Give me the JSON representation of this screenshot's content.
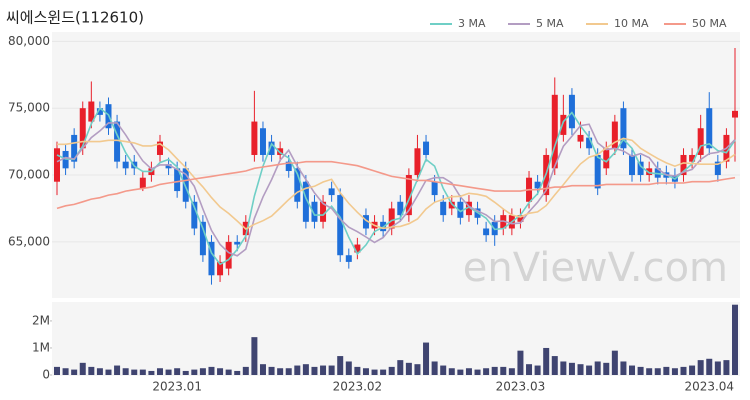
{
  "chart_data": [
    {
      "type": "candlestick",
      "title": "씨에스윈드(112610)",
      "watermark": "enViewV.com",
      "up_color": "#e8202a",
      "down_color": "#1f6fd9",
      "categories": [
        null,
        null,
        null,
        null,
        null,
        null,
        null,
        null,
        null,
        null,
        null,
        null,
        null,
        null,
        "2023.01",
        null,
        null,
        null,
        null,
        null,
        null,
        null,
        null,
        null,
        null,
        null,
        null,
        null,
        null,
        null,
        null,
        null,
        null,
        null,
        null,
        "2023.02",
        null,
        null,
        null,
        null,
        null,
        null,
        null,
        null,
        null,
        null,
        null,
        null,
        null,
        null,
        null,
        null,
        null,
        null,
        "2023.03",
        null,
        null,
        null,
        null,
        null,
        null,
        null,
        null,
        null,
        null,
        null,
        null,
        null,
        null,
        null,
        null,
        null,
        null,
        null,
        null,
        null,
        "2023.04",
        null,
        null,
        null
      ],
      "open": [
        69500,
        71800,
        73000,
        72000,
        74000,
        75000,
        75300,
        74000,
        71000,
        71000,
        69000,
        70000,
        71500,
        70800,
        70500,
        70500,
        68000,
        66500,
        65000,
        62500,
        63000,
        65000,
        65500,
        71500,
        73500,
        72500,
        71500,
        71000,
        70500,
        69500,
        68000,
        66500,
        69000,
        68500,
        64000,
        64200,
        67000,
        66000,
        66500,
        66000,
        68000,
        67000,
        70000,
        72500,
        69500,
        68000,
        67500,
        68000,
        67000,
        67500,
        66000,
        66500,
        66000,
        66000,
        66500,
        68000,
        69500,
        68500,
        70500,
        73000,
        76000,
        72500,
        72800,
        71500,
        70500,
        72000,
        75000,
        71500,
        71000,
        70000,
        70500,
        70200,
        70000,
        70000,
        71000,
        71500,
        75000,
        71000,
        71000,
        74300
      ],
      "high": [
        72500,
        72300,
        73500,
        75500,
        77000,
        75500,
        75800,
        74500,
        71500,
        71500,
        70300,
        71000,
        73000,
        71300,
        71000,
        71000,
        68500,
        67000,
        65500,
        64000,
        65500,
        65500,
        67000,
        76300,
        74000,
        73000,
        72500,
        71500,
        71000,
        70000,
        68500,
        68500,
        69500,
        69000,
        64500,
        65300,
        67500,
        67000,
        67000,
        68000,
        68500,
        70500,
        73000,
        73000,
        70000,
        68500,
        68500,
        68500,
        68500,
        68000,
        66500,
        67000,
        67500,
        67500,
        67500,
        70300,
        70000,
        72000,
        77300,
        76000,
        76500,
        74000,
        73300,
        72000,
        72500,
        74500,
        75500,
        72000,
        71500,
        71000,
        71000,
        70700,
        70500,
        72000,
        72000,
        74500,
        76200,
        71500,
        73500,
        79500
      ],
      "low": [
        68500,
        70000,
        70500,
        71500,
        73500,
        74000,
        73000,
        70500,
        70000,
        70000,
        68800,
        69500,
        71000,
        70000,
        68300,
        67500,
        65500,
        63500,
        61800,
        62000,
        62500,
        64300,
        65000,
        71000,
        71000,
        71000,
        71000,
        69800,
        67500,
        66000,
        66000,
        66000,
        68000,
        63500,
        63000,
        63700,
        65500,
        65500,
        65300,
        65500,
        66500,
        66500,
        69500,
        71000,
        68000,
        66500,
        67000,
        66300,
        66500,
        66300,
        65000,
        64700,
        65500,
        65500,
        66000,
        67500,
        68500,
        68000,
        70000,
        72500,
        73000,
        72000,
        71500,
        68500,
        70000,
        71500,
        71500,
        69500,
        69500,
        69500,
        69300,
        69300,
        69000,
        69500,
        70500,
        71000,
        71500,
        69500,
        70500,
        71000
      ],
      "close": [
        72000,
        70500,
        71000,
        75000,
        75500,
        74500,
        73500,
        71000,
        70500,
        70500,
        69800,
        70500,
        72500,
        70500,
        68800,
        68000,
        66000,
        64000,
        62500,
        63500,
        65000,
        64800,
        66500,
        74000,
        71500,
        71500,
        72000,
        70300,
        68000,
        66500,
        66500,
        68000,
        68500,
        64000,
        63500,
        64800,
        66000,
        66500,
        65800,
        67500,
        67000,
        70000,
        72000,
        71500,
        68500,
        67000,
        68000,
        66800,
        68000,
        66800,
        65500,
        65500,
        67000,
        67000,
        67000,
        69800,
        69000,
        71500,
        76000,
        74500,
        73500,
        73000,
        72000,
        69000,
        72000,
        74000,
        72000,
        70000,
        70000,
        70500,
        69800,
        69800,
        69500,
        71500,
        71500,
        73500,
        72000,
        70000,
        73000,
        74800
      ],
      "series": [
        {
          "name": "3 MA",
          "color": "#6fcfc6",
          "values": [
            71500,
            71200,
            71170,
            72170,
            73830,
            75000,
            74500,
            73000,
            71670,
            70670,
            70270,
            70270,
            70930,
            71170,
            70600,
            69100,
            67600,
            66000,
            64170,
            63330,
            63670,
            64430,
            65430,
            68430,
            70670,
            72330,
            71670,
            71270,
            70100,
            68270,
            67000,
            67000,
            67670,
            66830,
            65330,
            64100,
            64770,
            65770,
            66100,
            66600,
            66770,
            68170,
            69670,
            71170,
            70670,
            69000,
            67830,
            67270,
            67600,
            67200,
            66770,
            65930,
            66000,
            66500,
            67000,
            67930,
            68600,
            70100,
            72170,
            74000,
            74670,
            73670,
            72830,
            71330,
            71000,
            71670,
            72670,
            72000,
            70670,
            70170,
            70100,
            70030,
            69700,
            70270,
            70830,
            72170,
            72330,
            71830,
            71670,
            72600
          ]
        },
        {
          "name": "5 MA",
          "color": "#b39dc2",
          "values": [
            71000,
            71300,
            71200,
            72000,
            72800,
            73300,
            73900,
            73900,
            73000,
            72000,
            71060,
            70460,
            70760,
            70760,
            70420,
            70060,
            69160,
            67460,
            65860,
            64800,
            64200,
            63960,
            64460,
            66760,
            68360,
            69660,
            71100,
            71860,
            70660,
            69660,
            68660,
            67860,
            67500,
            66700,
            66100,
            65760,
            65360,
            64960,
            65320,
            66120,
            66560,
            67360,
            68460,
            69600,
            69800,
            69800,
            69400,
            68360,
            67660,
            67320,
            67020,
            66520,
            66560,
            66360,
            66400,
            67260,
            67960,
            68860,
            70660,
            72160,
            72900,
            73700,
            73800,
            72400,
            71900,
            72000,
            71800,
            71400,
            71600,
            71300,
            70460,
            70020,
            69920,
            70220,
            70420,
            71160,
            71600,
            71700,
            72000,
            72660
          ]
        },
        {
          "name": "10 MA",
          "color": "#f2c98f",
          "values": [
            72300,
            72300,
            72400,
            72500,
            72500,
            72500,
            72600,
            72600,
            72500,
            72400,
            72180,
            72180,
            72330,
            71880,
            71210,
            70560,
            69810,
            69110,
            68310,
            67610,
            67130,
            66560,
            65960,
            66310,
            66580,
            66930,
            67530,
            68160,
            68710,
            69010,
            69160,
            69480,
            69680,
            68680,
            67880,
            67210,
            66610,
            66230,
            66010,
            66110,
            66160,
            66360,
            66710,
            67460,
            67960,
            68180,
            68380,
            68410,
            68630,
            68560,
            68410,
            67960,
            67460,
            67010,
            66860,
            67140,
            67240,
            67710,
            68510,
            69280,
            70080,
            70830,
            71330,
            71530,
            72030,
            72450,
            72750,
            72600,
            72000,
            71600,
            71230,
            70910,
            70660,
            70910,
            70860,
            70810,
            70810,
            70810,
            71110,
            71540
          ]
        },
        {
          "name": "50 MA",
          "color": "#f4998a",
          "values": [
            67500,
            67700,
            67800,
            68000,
            68200,
            68300,
            68500,
            68600,
            68800,
            68900,
            69000,
            69100,
            69300,
            69400,
            69500,
            69600,
            69700,
            69800,
            69900,
            70000,
            70100,
            70200,
            70300,
            70500,
            70600,
            70700,
            70800,
            70900,
            70900,
            71000,
            71000,
            71000,
            71000,
            70900,
            70800,
            70700,
            70500,
            70300,
            70100,
            69900,
            69800,
            69700,
            69600,
            69600,
            69500,
            69400,
            69300,
            69200,
            69100,
            69000,
            68900,
            68800,
            68800,
            68800,
            68800,
            68900,
            68900,
            69000,
            69100,
            69100,
            69200,
            69200,
            69200,
            69200,
            69300,
            69300,
            69300,
            69300,
            69300,
            69300,
            69400,
            69400,
            69400,
            69400,
            69500,
            69500,
            69500,
            69600,
            69700,
            69800
          ]
        }
      ],
      "ylim": [
        60800,
        80700
      ],
      "yticks": [
        {
          "value": 65000,
          "label": "65,000"
        },
        {
          "value": 70000,
          "label": "70,000"
        },
        {
          "value": 75000,
          "label": "75,000"
        },
        {
          "value": 80000,
          "label": "80,000"
        }
      ],
      "legend": "top-right"
    },
    {
      "type": "bar",
      "color": "#3f4470",
      "values": [
        300000,
        250000,
        200000,
        450000,
        300000,
        250000,
        200000,
        350000,
        250000,
        200000,
        200000,
        150000,
        250000,
        200000,
        250000,
        150000,
        200000,
        250000,
        300000,
        250000,
        200000,
        150000,
        300000,
        1400000,
        400000,
        300000,
        250000,
        250000,
        350000,
        400000,
        300000,
        350000,
        350000,
        700000,
        500000,
        300000,
        250000,
        200000,
        200000,
        300000,
        550000,
        450000,
        400000,
        1200000,
        500000,
        350000,
        250000,
        200000,
        250000,
        200000,
        250000,
        300000,
        300000,
        250000,
        900000,
        400000,
        350000,
        1000000,
        700000,
        500000,
        450000,
        400000,
        350000,
        500000,
        450000,
        900000,
        500000,
        350000,
        300000,
        250000,
        250000,
        300000,
        250000,
        300000,
        350000,
        550000,
        600000,
        500000,
        550000,
        2600000
      ],
      "ylim": [
        0,
        2700000
      ],
      "yticks": [
        0,
        {
          "value": 1000000,
          "label": "1M"
        },
        {
          "value": 2000000,
          "label": "2M"
        }
      ]
    }
  ]
}
